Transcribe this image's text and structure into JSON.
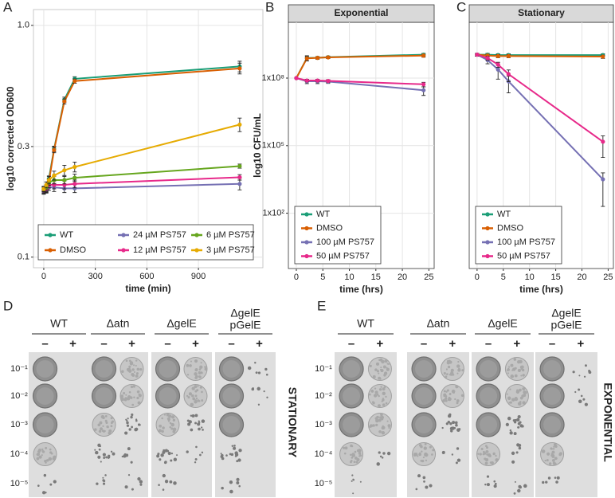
{
  "chart_data": [
    {
      "type": "line",
      "panel": "A",
      "xlabel": "time (min)",
      "ylabel": "log10 corrected OD600",
      "x": [
        0,
        15,
        30,
        60,
        120,
        180,
        1140
      ],
      "xlim": [
        -60,
        1275
      ],
      "xticks": [
        0,
        300,
        600,
        900
      ],
      "ylim": [
        0.09,
        1.17
      ],
      "yticks": [
        0.1,
        0.3,
        {
          "value": 1,
          "label": "1.0"
        }
      ],
      "yscale": "log",
      "grid": true,
      "legend": "bottom",
      "series": [
        {
          "name": "WT",
          "color": "#1b9e77",
          "values": [
            0.195,
            0.197,
            0.218,
            0.293,
            0.478,
            0.588,
            0.665
          ],
          "errors": [
            0.006,
            0.006,
            0.006,
            0.008,
            0.012,
            0.012,
            0.035
          ]
        },
        {
          "name": "DMSO",
          "color": "#d95f02",
          "values": [
            0.193,
            0.195,
            0.212,
            0.29,
            0.47,
            0.575,
            0.652
          ],
          "errors": [
            0.006,
            0.006,
            0.006,
            0.008,
            0.012,
            0.012,
            0.035
          ]
        },
        {
          "name": "24 µM PS757",
          "color": "#7570b3",
          "values": [
            0.192,
            0.195,
            0.2,
            0.2,
            0.198,
            0.198,
            0.207
          ],
          "errors": [
            0.005,
            0.005,
            0.006,
            0.008,
            0.008,
            0.008,
            0.012
          ]
        },
        {
          "name": "12 µM PS757",
          "color": "#e7298a",
          "values": [
            0.194,
            0.197,
            0.205,
            0.205,
            0.205,
            0.207,
            0.221
          ],
          "errors": [
            0.005,
            0.005,
            0.006,
            0.008,
            0.008,
            0.008,
            0.006
          ]
        },
        {
          "name": "6 µM PS757",
          "color": "#66a61e",
          "values": [
            0.196,
            0.2,
            0.21,
            0.215,
            0.215,
            0.22,
            0.247
          ],
          "errors": [
            0.005,
            0.005,
            0.006,
            0.008,
            0.008,
            0.008,
            0.005
          ]
        },
        {
          "name": "3 µM PS757",
          "color": "#e6ab02",
          "values": [
            0.197,
            0.205,
            0.215,
            0.225,
            0.237,
            0.245,
            0.373
          ],
          "errors": [
            0.005,
            0.006,
            0.008,
            0.01,
            0.012,
            0.012,
            0.025
          ]
        }
      ]
    },
    {
      "type": "line",
      "panel": "B",
      "title": "Exponential",
      "xlabel": "time (hrs)",
      "ylabel": "log10 CFU/mL",
      "x": [
        0,
        2,
        4,
        6,
        24
      ],
      "xlim": [
        -1.5,
        26
      ],
      "xticks": [
        0,
        5,
        10,
        15,
        20,
        25
      ],
      "ylim": [
        0.35,
        30000000000
      ],
      "yticks": [
        {
          "value": 100,
          "label": "1x10²"
        },
        {
          "value": 100000,
          "label": "1x10⁵"
        },
        {
          "value": 100000000,
          "label": "1x10⁸"
        }
      ],
      "yscale": "log",
      "grid": true,
      "legend": "bottom-left",
      "series": [
        {
          "name": "WT",
          "color": "#1b9e77",
          "values": [
            100000000,
            780000000,
            800000000,
            850000000,
            1100000000
          ],
          "errors": [
            0,
            200000000,
            100000000,
            100000000,
            150000000
          ]
        },
        {
          "name": "DMSO",
          "color": "#d95f02",
          "values": [
            100000000,
            750000000,
            790000000,
            830000000,
            1000000000
          ],
          "errors": [
            0,
            150000000,
            100000000,
            100000000,
            150000000
          ]
        },
        {
          "name": "100 µM PS757",
          "color": "#7570b3",
          "values": [
            100000000,
            72000000,
            72000000,
            70000000,
            29000000
          ],
          "errors": [
            0,
            15000000,
            15000000,
            12000000,
            12000000
          ]
        },
        {
          "name": "50 µM PS757",
          "color": "#e7298a",
          "values": [
            100000000,
            78000000,
            78000000,
            75000000,
            53000000
          ],
          "errors": [
            0,
            10000000,
            10000000,
            10000000,
            12000000
          ]
        }
      ]
    },
    {
      "type": "line",
      "panel": "C",
      "title": "Stationary",
      "xlabel": "time (hrs)",
      "x": [
        0,
        2,
        4,
        6,
        24
      ],
      "xlim": [
        -1.5,
        26
      ],
      "xticks": [
        0,
        5,
        10,
        15,
        20,
        25
      ],
      "ylim": [
        0.35,
        30000000000
      ],
      "yscale": "log",
      "grid": true,
      "legend": "bottom-left",
      "series": [
        {
          "name": "WT",
          "color": "#1b9e77",
          "values": [
            1100000000,
            1100000000,
            1050000000,
            1050000000,
            1050000000
          ],
          "errors": [
            150000000,
            150000000,
            150000000,
            150000000,
            150000000
          ]
        },
        {
          "name": "DMSO",
          "color": "#d95f02",
          "values": [
            1100000000,
            1000000000,
            950000000,
            950000000,
            900000000
          ],
          "errors": [
            150000000,
            150000000,
            150000000,
            150000000,
            150000000
          ]
        },
        {
          "name": "100 µM PS757",
          "color": "#7570b3",
          "values": [
            1100000000,
            630000000,
            240000000,
            72000000,
            3200
          ],
          "errors": [
            150000000,
            200000000,
            150000000,
            50000000,
            3000
          ]
        },
        {
          "name": "50 µM PS757",
          "color": "#e7298a",
          "values": [
            1100000000,
            780000000,
            400000000,
            150000000,
            150000
          ],
          "errors": [
            150000000,
            150000000,
            100000000,
            80000000,
            120000
          ]
        }
      ]
    }
  ],
  "plates": [
    {
      "panel": "D",
      "label": "STATIONARY",
      "treatments": [
        "–",
        "+"
      ],
      "dilutions": [
        "10⁻¹",
        "10⁻²",
        "10⁻³",
        "10⁻⁴",
        "10⁻⁵"
      ],
      "groups": [
        {
          "label": "WT"
        },
        {
          "label": "Δatn"
        },
        {
          "label": "ΔgelE"
        },
        {
          "label": "ΔgelE",
          "sublabel": "pGelE"
        }
      ]
    },
    {
      "panel": "E",
      "label": "EXPONENTIAL",
      "treatments": [
        "–",
        "+"
      ],
      "dilutions": [
        "10⁻¹",
        "10⁻²",
        "10⁻³",
        "10⁻⁴",
        "10⁻⁵"
      ],
      "groups": [
        {
          "label": "WT"
        },
        {
          "label": "Δatn"
        },
        {
          "label": "ΔgelE"
        },
        {
          "label": "ΔgelE",
          "sublabel": "pGelE"
        }
      ]
    }
  ]
}
